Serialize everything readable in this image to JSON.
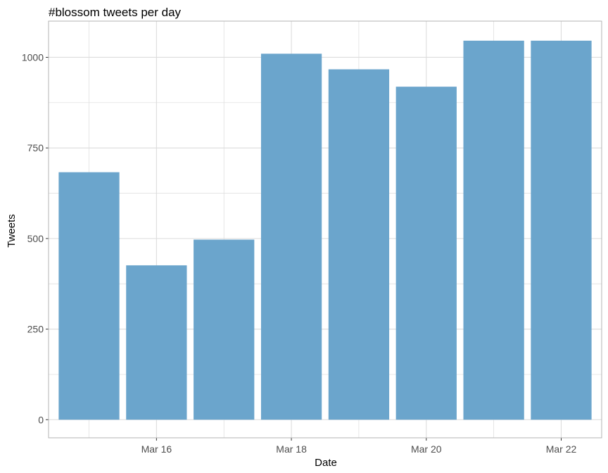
{
  "chart_data": {
    "type": "bar",
    "title": "#blossom tweets per day",
    "xlabel": "Date",
    "ylabel": "Tweets",
    "categories": [
      "Mar 15",
      "Mar 16",
      "Mar 17",
      "Mar 18",
      "Mar 19",
      "Mar 20",
      "Mar 21",
      "Mar 22"
    ],
    "values": [
      683,
      426,
      497,
      1010,
      967,
      919,
      1046,
      1046
    ],
    "x_tick_labels": [
      "Mar 16",
      "Mar 18",
      "Mar 20",
      "Mar 22"
    ],
    "y_ticks": [
      0,
      250,
      500,
      750,
      1000
    ],
    "ylim": [
      -50,
      1100
    ],
    "grid": true,
    "bar_color": "#6ba5cc",
    "grid_color": "#dcdcdc",
    "panel_border_color": "#b3b3b3"
  }
}
